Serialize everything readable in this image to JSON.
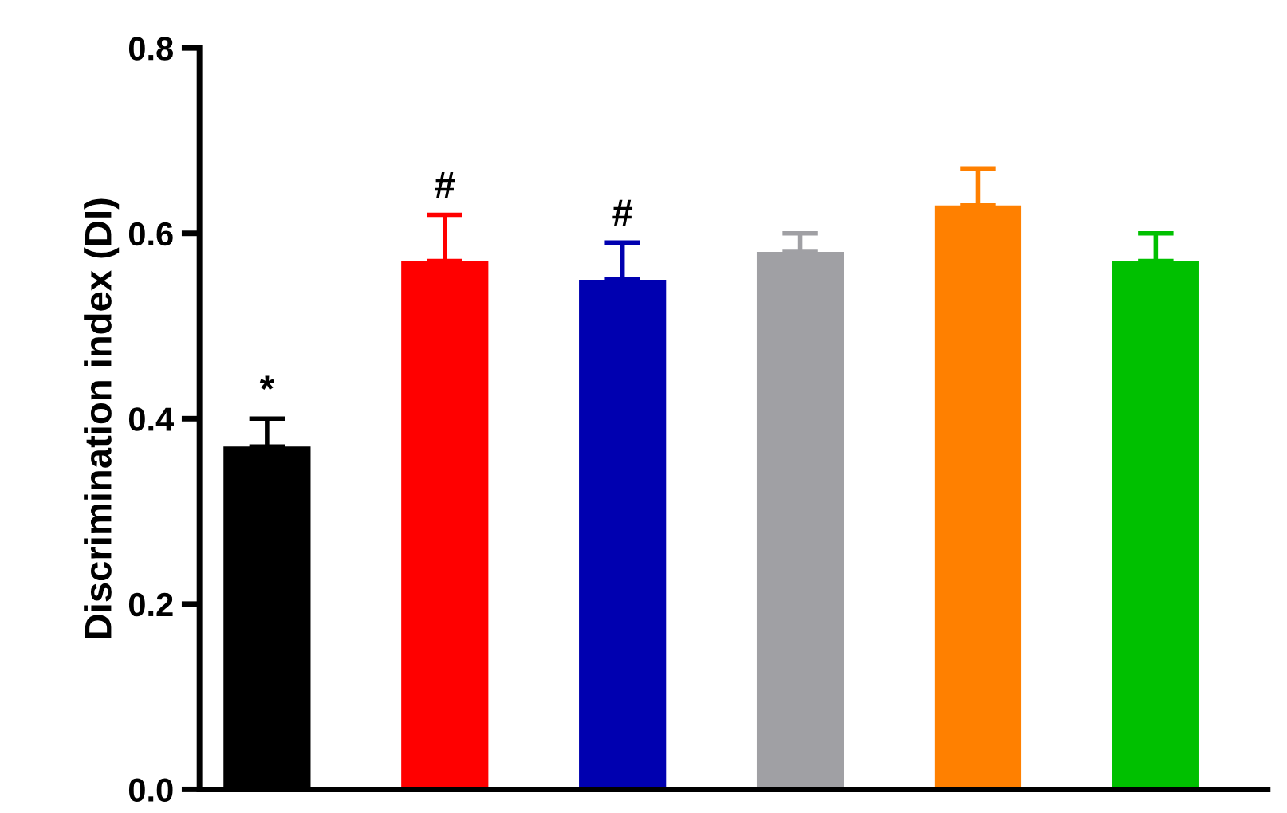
{
  "chart_data": {
    "type": "bar",
    "ylabel": "Discrimination index (DI)",
    "categories": [
      null,
      null,
      null,
      null,
      null,
      null
    ],
    "values": [
      0.37,
      0.57,
      0.55,
      0.58,
      0.63,
      0.57
    ],
    "errors": [
      [
        0.37,
        0.4
      ],
      [
        0.57,
        0.62
      ],
      [
        0.55,
        0.59
      ],
      [
        0.58,
        0.6
      ],
      [
        0.63,
        0.67
      ],
      [
        0.57,
        0.6
      ]
    ],
    "colors": [
      "#000000",
      "#ff0000",
      "#0000b0",
      "#a0a0a4",
      "#ff8000",
      "#00c000"
    ],
    "ylim": [
      0,
      0.8
    ],
    "yticks": [
      {
        "value": 0,
        "label": "0.0"
      },
      0.2,
      0.4,
      0.6,
      0.8
    ],
    "grid": false,
    "annotations": [
      "*",
      "#",
      "#"
    ]
  }
}
